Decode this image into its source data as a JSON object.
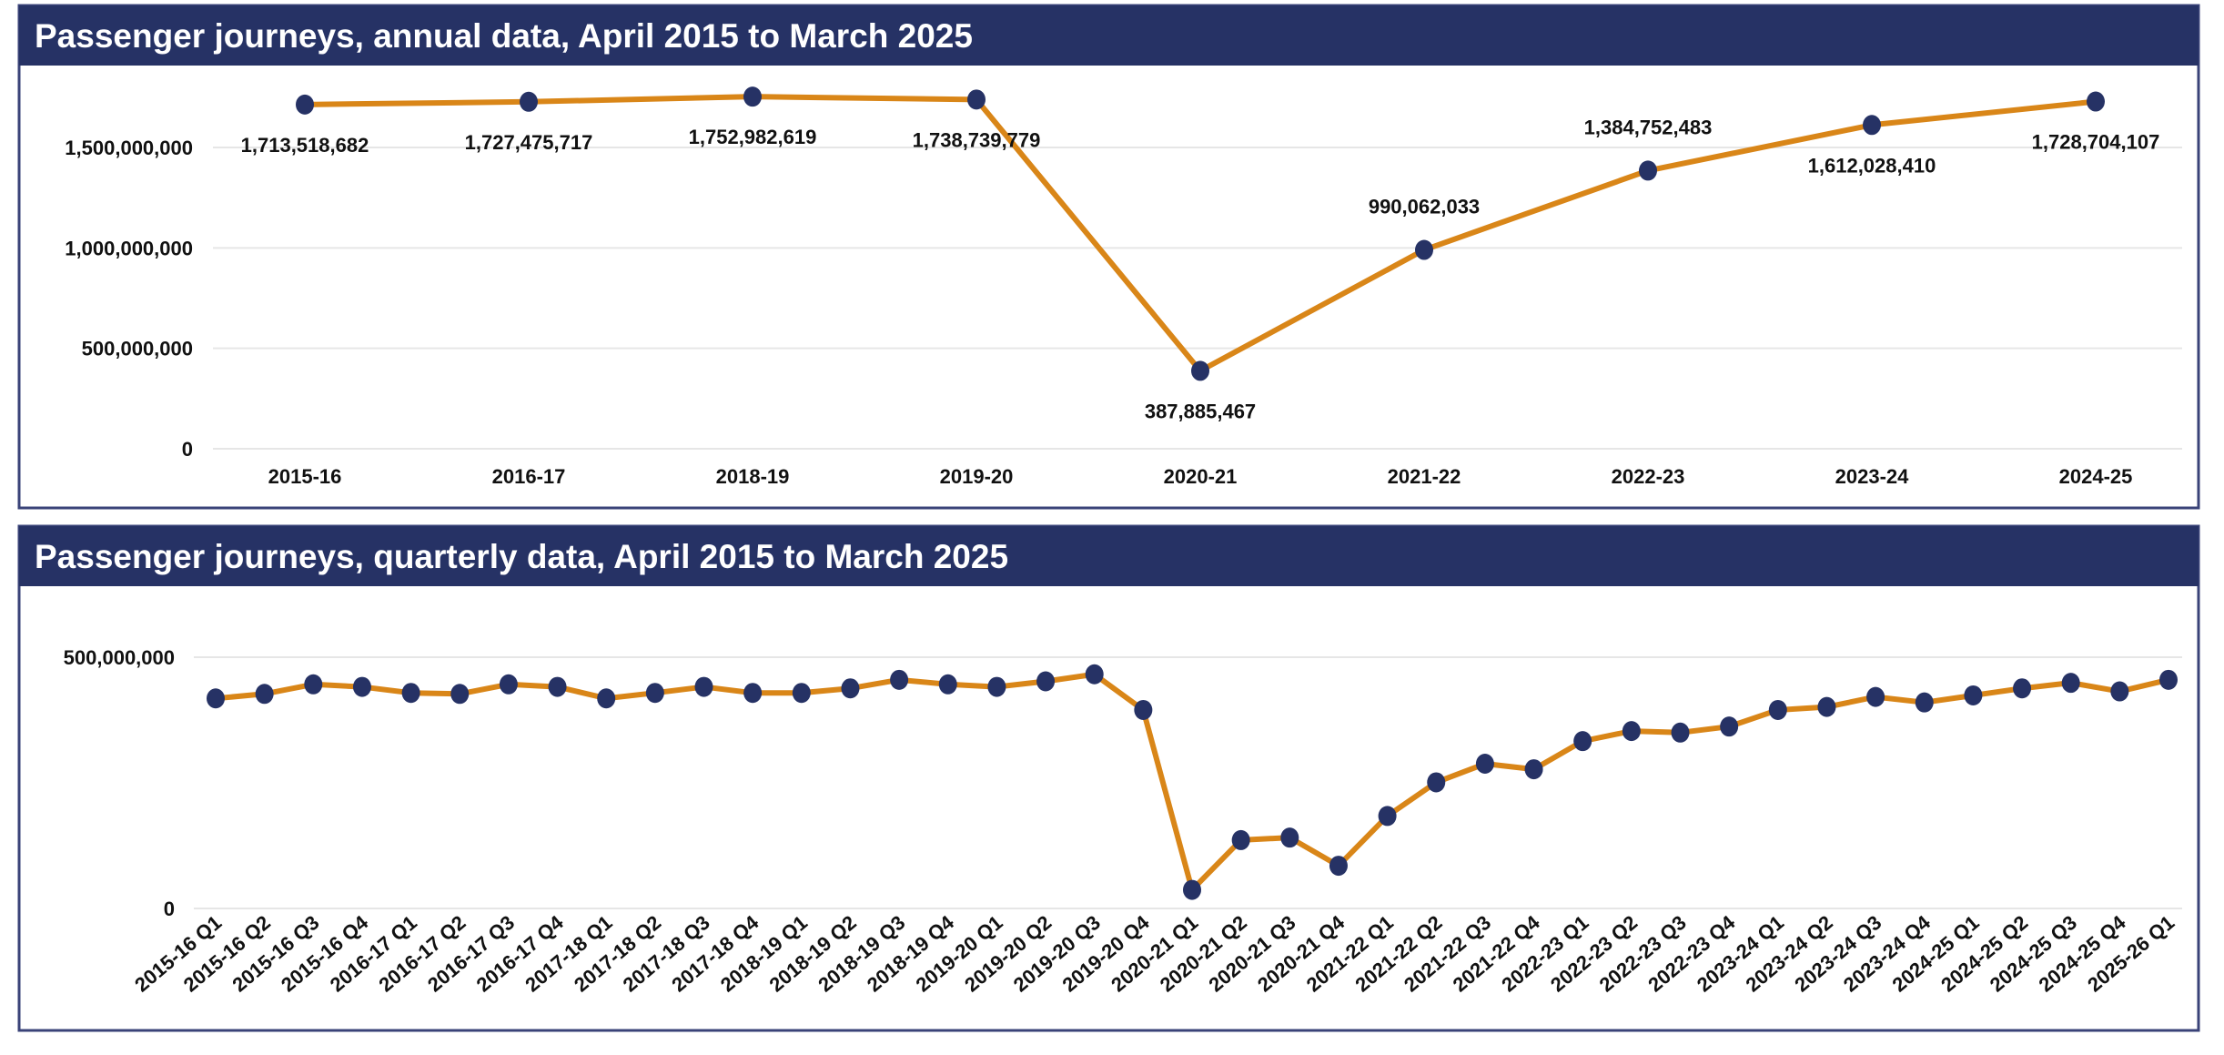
{
  "colors": {
    "header": "#263265",
    "line": "#d98618",
    "marker": "#263265",
    "border": "#3a4378",
    "grid": "#e6e6e6"
  },
  "chart_data": [
    {
      "type": "line",
      "title": "Passenger journeys, annual data, April 2015 to March 2025",
      "categories": [
        "2015-16",
        "2016-17",
        "2018-19",
        "2019-20",
        "2020-21",
        "2021-22",
        "2022-23",
        "2023-24",
        "2024-25"
      ],
      "values": [
        1713518682,
        1727475717,
        1752982619,
        1738739779,
        387885467,
        990062033,
        1384752483,
        1612028410,
        1728704107
      ],
      "data_labels": [
        "1,713,518,682",
        "1,727,475,717",
        "1,752,982,619",
        "1,738,739,779",
        "387,885,467",
        "990,062,033",
        "1,384,752,483",
        "1,612,028,410",
        "1,728,704,107"
      ],
      "yticks": [
        0,
        500000000,
        1000000000,
        1500000000
      ],
      "ytick_labels": [
        "0",
        "500,000,000",
        "1,000,000,000",
        "1,500,000,000"
      ],
      "ylim": [
        0,
        1800000000
      ],
      "grid": true,
      "legend": "none"
    },
    {
      "type": "line",
      "title": "Passenger journeys, quarterly data, April 2015 to March 2025",
      "categories": [
        "2015-16 Q1",
        "2015-16 Q2",
        "2015-16 Q3",
        "2015-16 Q4",
        "2016-17 Q1",
        "2016-17 Q2",
        "2016-17 Q3",
        "2016-17 Q4",
        "2017-18 Q1",
        "2017-18 Q2",
        "2017-18 Q3",
        "2017-18 Q4",
        "2018-19 Q1",
        "2018-19 Q2",
        "2018-19 Q3",
        "2018-19 Q4",
        "2019-20 Q1",
        "2019-20 Q2",
        "2019-20 Q3",
        "2019-20 Q4",
        "2020-21 Q1",
        "2020-21 Q2",
        "2020-21 Q3",
        "2020-21 Q4",
        "2021-22 Q1",
        "2021-22 Q2",
        "2021-22 Q3",
        "2021-22 Q4",
        "2022-23 Q1",
        "2022-23 Q2",
        "2022-23 Q3",
        "2022-23 Q4",
        "2023-24 Q1",
        "2023-24 Q2",
        "2023-24 Q3",
        "2023-24 Q4",
        "2024-25 Q1",
        "2024-25 Q2",
        "2024-25 Q3",
        "2024-25 Q4",
        "2025-26 Q1"
      ],
      "values": [
        418000000,
        427000000,
        446000000,
        441000000,
        429000000,
        427000000,
        446000000,
        441000000,
        418000000,
        429000000,
        441000000,
        429000000,
        429000000,
        438000000,
        455000000,
        446000000,
        441000000,
        452000000,
        466000000,
        395000000,
        37000000,
        136000000,
        141000000,
        85000000,
        184000000,
        251000000,
        288000000,
        277000000,
        333000000,
        353000000,
        350000000,
        362000000,
        395000000,
        401000000,
        421000000,
        410000000,
        424000000,
        438000000,
        449000000,
        432000000,
        455000000
      ],
      "yticks": [
        0,
        500000000
      ],
      "ytick_labels": [
        "0",
        "500,000,000"
      ],
      "ylim": [
        0,
        500000000
      ],
      "grid": true,
      "legend": "none"
    }
  ]
}
